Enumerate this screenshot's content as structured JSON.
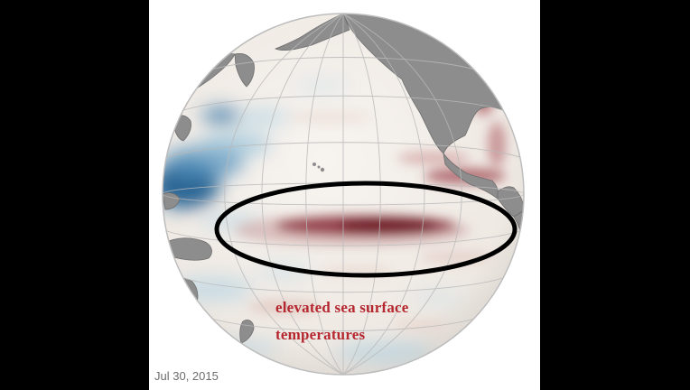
{
  "image": {
    "background_color": "#000000",
    "panel_color": "#ffffff"
  },
  "map": {
    "ocean_neutral_color": "#f3efeb",
    "land_color": "#8d8d8d",
    "warm_anomaly_color": "#7e1f2c",
    "cool_anomaly_color": "#1d5d8e",
    "highlight_ellipse_color": "#000000"
  },
  "annotation": {
    "line1": "elevated sea surface",
    "line2": "temperatures",
    "color": "#b5272f"
  },
  "date_label": "Jul 30, 2015"
}
